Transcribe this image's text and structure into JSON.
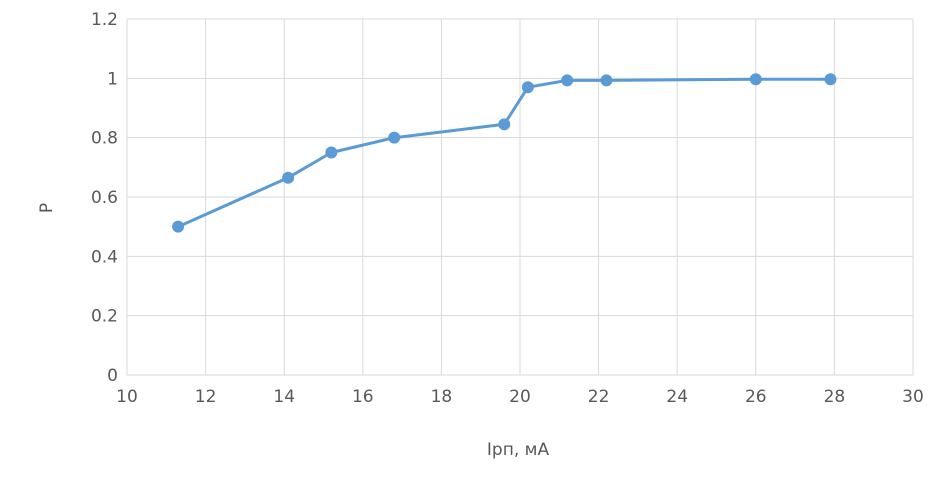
{
  "chart_data": {
    "type": "line",
    "title": "",
    "xlabel": "Iрп, мА",
    "ylabel": "P",
    "xlim": [
      10,
      30
    ],
    "ylim": [
      0,
      1.2
    ],
    "xticks": [
      "10",
      "12",
      "14",
      "16",
      "18",
      "20",
      "22",
      "24",
      "26",
      "28",
      "30"
    ],
    "yticks": [
      "0",
      "0.2",
      "0.4",
      "0.6",
      "0.8",
      "1",
      "1.2"
    ],
    "grid": true,
    "legend": "none",
    "series": [
      {
        "color": "#5b9bd5",
        "x": [
          11.3,
          14.1,
          15.2,
          16.8,
          19.6,
          20.2,
          21.2,
          22.2,
          26.0,
          27.9
        ],
        "y": [
          0.5,
          0.665,
          0.75,
          0.8,
          0.845,
          0.97,
          0.993,
          0.993,
          0.997,
          0.997
        ]
      }
    ]
  }
}
